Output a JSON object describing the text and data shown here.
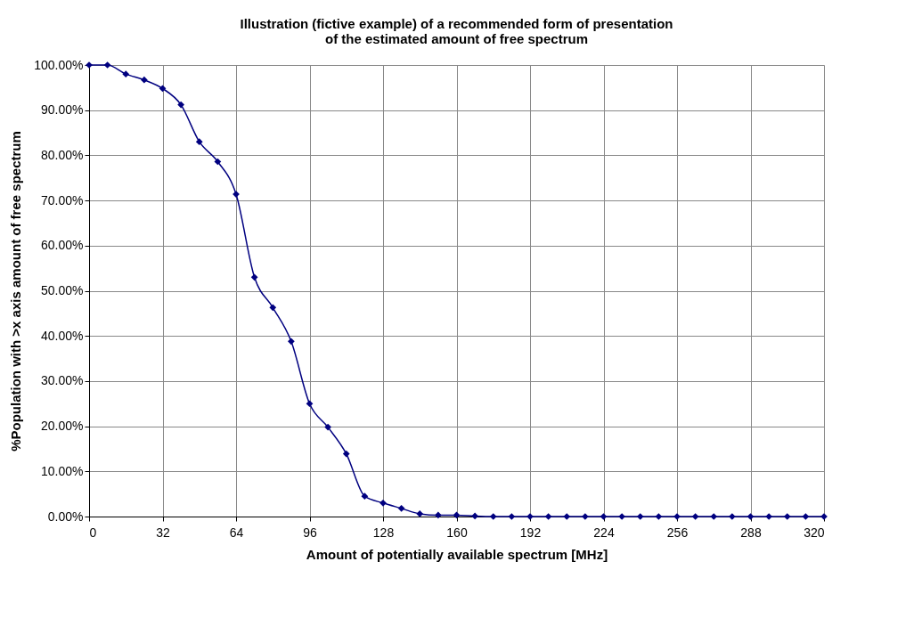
{
  "chart_data": {
    "type": "line",
    "title": [
      "Illustration (fictive example) of a recommended form of presentation",
      "of the estimated amount of free spectrum"
    ],
    "xlabel": "Amount of potentially available spectrum [MHz]",
    "ylabel": "%Population with >x axis amount of free spectrum",
    "x": [
      0,
      8,
      16,
      24,
      32,
      40,
      48,
      56,
      64,
      72,
      80,
      88,
      96,
      104,
      112,
      120,
      128,
      136,
      144,
      152,
      160,
      168,
      176,
      184,
      192,
      200,
      208,
      216,
      224,
      232,
      240,
      248,
      256,
      264,
      272,
      280,
      288,
      296,
      304,
      312,
      320
    ],
    "series": [
      {
        "color": "#000080",
        "values": [
          100,
          100,
          98,
          96.7,
          94.8,
          91.2,
          83,
          78.6,
          71.4,
          53,
          46.3,
          38.8,
          25,
          19.8,
          13.9,
          4.5,
          3,
          1.8,
          0.6,
          0.3,
          0.3,
          0.1,
          0,
          0,
          0,
          0,
          0,
          0,
          0,
          0,
          0,
          0,
          0,
          0,
          0,
          0,
          0,
          0,
          0,
          0,
          0
        ]
      }
    ],
    "xlim": [
      0,
      320
    ],
    "xticks": [
      0,
      32,
      64,
      96,
      128,
      160,
      192,
      224,
      256,
      288,
      320
    ],
    "ylim": [
      0,
      100
    ],
    "yticks": [
      {
        "value": 0,
        "label": "0.00%"
      },
      {
        "value": 10,
        "label": "10.00%"
      },
      {
        "value": 20,
        "label": "20.00%"
      },
      {
        "value": 30,
        "label": "30.00%"
      },
      {
        "value": 40,
        "label": "40.00%"
      },
      {
        "value": 50,
        "label": "50.00%"
      },
      {
        "value": 60,
        "label": "60.00%"
      },
      {
        "value": 70,
        "label": "70.00%"
      },
      {
        "value": 80,
        "label": "80.00%"
      },
      {
        "value": 90,
        "label": "90.00%"
      },
      {
        "value": 100,
        "label": "100.00%"
      }
    ],
    "grid": true,
    "marker": "diamond",
    "line_style": "solid"
  }
}
